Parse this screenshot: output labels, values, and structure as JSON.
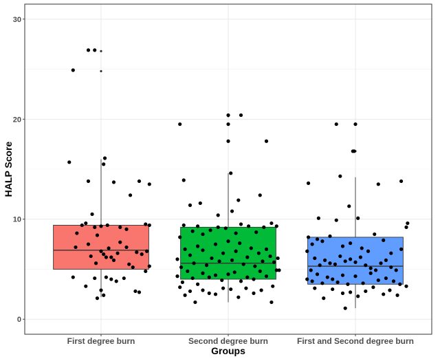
{
  "chart_data": {
    "type": "boxplot",
    "xlabel": "Groups",
    "ylabel": "HALP Score",
    "ylim": [
      -1.5,
      31.5
    ],
    "yticks": [
      0,
      10,
      20,
      30
    ],
    "grid": true,
    "categories": [
      "First degree burn",
      "Second degree burn",
      "First and Second degree burn"
    ],
    "series": [
      {
        "category": "First degree burn",
        "color": "#F8766D",
        "box": {
          "whisker_low": 2.2,
          "q1": 5.0,
          "median": 6.9,
          "q3": 9.4,
          "whisker_high": 16.0
        },
        "outliers": [
          24.8,
          26.8
        ],
        "points": [
          [
            0.78,
            24.9
          ],
          [
            0.9,
            26.9
          ],
          [
            0.95,
            26.9
          ],
          [
            0.75,
            15.7
          ],
          [
            1.03,
            16.1
          ],
          [
            1.02,
            15.5
          ],
          [
            0.9,
            13.8
          ],
          [
            1.1,
            13.7
          ],
          [
            1.3,
            13.8
          ],
          [
            1.38,
            13.5
          ],
          [
            1.23,
            12.4
          ],
          [
            0.78,
            4.2
          ],
          [
            0.8,
            7.2
          ],
          [
            0.81,
            8.6
          ],
          [
            0.85,
            9.4
          ],
          [
            0.88,
            9.6
          ],
          [
            0.93,
            10.5
          ],
          [
            0.95,
            9.2
          ],
          [
            0.97,
            8.4
          ],
          [
            1.0,
            9.3
          ],
          [
            1.05,
            9.4
          ],
          [
            1.15,
            9.2
          ],
          [
            1.2,
            9.0
          ],
          [
            1.35,
            9.5
          ],
          [
            1.38,
            9.4
          ],
          [
            0.9,
            7.5
          ],
          [
            0.92,
            6.3
          ],
          [
            0.96,
            5.6
          ],
          [
            1.0,
            6.8
          ],
          [
            1.02,
            6.5
          ],
          [
            1.04,
            6.2
          ],
          [
            1.06,
            7.1
          ],
          [
            1.08,
            6.2
          ],
          [
            1.1,
            5.9
          ],
          [
            1.13,
            6.6
          ],
          [
            1.15,
            7.7
          ],
          [
            1.2,
            7.2
          ],
          [
            1.25,
            5.2
          ],
          [
            1.28,
            6.7
          ],
          [
            1.32,
            6.5
          ],
          [
            1.36,
            6.8
          ],
          [
            1.38,
            5.3
          ],
          [
            0.88,
            3.3
          ],
          [
            0.95,
            4.1
          ],
          [
            1.0,
            2.9
          ],
          [
            1.04,
            4.2
          ],
          [
            1.08,
            4.0
          ],
          [
            1.12,
            3.8
          ],
          [
            1.18,
            4.1
          ],
          [
            1.22,
            5.5
          ],
          [
            1.27,
            2.8
          ],
          [
            1.3,
            2.7
          ],
          [
            1.35,
            4.8
          ],
          [
            0.97,
            2.1
          ],
          [
            1.02,
            2.4
          ]
        ]
      },
      {
        "category": "Second degree burn",
        "color": "#00BA38",
        "box": {
          "whisker_low": 1.7,
          "q1": 4.0,
          "median": 5.6,
          "q3": 9.2,
          "whisker_high": 14.6
        },
        "outliers": [
          17.8,
          19.5,
          20.3
        ],
        "points": [
          [
            1.62,
            19.5
          ],
          [
            2.0,
            20.4
          ],
          [
            2.0,
            19.5
          ],
          [
            2.0,
            17.8
          ],
          [
            2.1,
            20.4
          ],
          [
            2.3,
            17.8
          ],
          [
            1.65,
            13.9
          ],
          [
            2.02,
            14.6
          ],
          [
            1.7,
            11.4
          ],
          [
            1.78,
            11.6
          ],
          [
            1.92,
            10.4
          ],
          [
            2.08,
            11.9
          ],
          [
            2.25,
            12.4
          ],
          [
            2.03,
            10.8
          ],
          [
            1.62,
            8.2
          ],
          [
            1.65,
            9.4
          ],
          [
            1.72,
            8.8
          ],
          [
            1.76,
            9.3
          ],
          [
            1.8,
            8.5
          ],
          [
            1.86,
            8.9
          ],
          [
            1.92,
            9.2
          ],
          [
            1.98,
            9.1
          ],
          [
            2.06,
            8.6
          ],
          [
            2.1,
            9.5
          ],
          [
            2.16,
            9.3
          ],
          [
            2.22,
            8.7
          ],
          [
            2.28,
            9.2
          ],
          [
            2.34,
            9.6
          ],
          [
            2.38,
            9.3
          ],
          [
            1.6,
            6.0
          ],
          [
            1.63,
            5.2
          ],
          [
            1.66,
            7.0
          ],
          [
            1.7,
            6.4
          ],
          [
            1.73,
            5.6
          ],
          [
            1.76,
            7.3
          ],
          [
            1.8,
            6.9
          ],
          [
            1.83,
            5.4
          ],
          [
            1.87,
            6.1
          ],
          [
            1.9,
            7.5
          ],
          [
            1.93,
            5.8
          ],
          [
            1.96,
            6.6
          ],
          [
            2.0,
            7.8
          ],
          [
            2.03,
            5.9
          ],
          [
            2.06,
            6.8
          ],
          [
            2.09,
            7.6
          ],
          [
            2.12,
            5.5
          ],
          [
            2.15,
            6.2
          ],
          [
            2.18,
            7.1
          ],
          [
            2.21,
            5.3
          ],
          [
            2.24,
            6.6
          ],
          [
            2.27,
            5.8
          ],
          [
            2.3,
            7.0
          ],
          [
            2.33,
            6.3
          ],
          [
            2.36,
            5.7
          ],
          [
            2.39,
            6.1
          ],
          [
            2.4,
            4.9
          ],
          [
            1.6,
            4.3
          ],
          [
            1.64,
            3.7
          ],
          [
            1.68,
            4.8
          ],
          [
            1.72,
            4.1
          ],
          [
            1.76,
            3.5
          ],
          [
            1.8,
            4.6
          ],
          [
            1.85,
            4.2
          ],
          [
            1.9,
            4.4
          ],
          [
            1.95,
            3.9
          ],
          [
            2.0,
            4.5
          ],
          [
            2.05,
            4.7
          ],
          [
            2.1,
            3.8
          ],
          [
            2.15,
            4.2
          ],
          [
            2.2,
            4.0
          ],
          [
            2.25,
            4.8
          ],
          [
            2.3,
            4.3
          ],
          [
            2.35,
            3.3
          ],
          [
            2.38,
            4.9
          ],
          [
            1.62,
            3.2
          ],
          [
            1.66,
            2.4
          ],
          [
            1.7,
            2.8
          ],
          [
            1.74,
            1.7
          ],
          [
            1.8,
            2.9
          ],
          [
            1.85,
            2.6
          ],
          [
            1.9,
            2.5
          ],
          [
            1.96,
            3.1
          ],
          [
            2.02,
            3.0
          ],
          [
            2.08,
            2.2
          ],
          [
            2.14,
            3.1
          ],
          [
            2.2,
            2.6
          ],
          [
            2.26,
            2.9
          ],
          [
            2.34,
            1.7
          ]
        ]
      },
      {
        "category": "First and Second degree burn",
        "color": "#619CFF",
        "box": {
          "whisker_low": 1.1,
          "q1": 3.5,
          "median": 5.3,
          "q3": 8.2,
          "whisker_high": 14.2
        },
        "outliers": [
          16.8,
          19.5
        ],
        "points": [
          [
            2.85,
            19.5
          ],
          [
            3.0,
            19.5
          ],
          [
            2.98,
            16.8
          ],
          [
            2.99,
            16.8
          ],
          [
            2.88,
            14.3
          ],
          [
            2.63,
            13.6
          ],
          [
            3.18,
            13.5
          ],
          [
            3.36,
            13.8
          ],
          [
            2.95,
            11.3
          ],
          [
            2.71,
            10.1
          ],
          [
            2.85,
            9.9
          ],
          [
            3.02,
            10.1
          ],
          [
            3.15,
            8.5
          ],
          [
            3.22,
            7.9
          ],
          [
            3.4,
            9.2
          ],
          [
            3.41,
            9.6
          ],
          [
            2.63,
            8.2
          ],
          [
            2.66,
            7.5
          ],
          [
            2.7,
            8.0
          ],
          [
            2.74,
            7.8
          ],
          [
            2.8,
            8.3
          ],
          [
            2.9,
            7.3
          ],
          [
            2.96,
            7.6
          ],
          [
            3.05,
            7.1
          ],
          [
            3.1,
            6.8
          ],
          [
            3.28,
            6.6
          ],
          [
            3.36,
            7.0
          ],
          [
            2.62,
            6.8
          ],
          [
            2.65,
            4.9
          ],
          [
            2.68,
            6.1
          ],
          [
            2.72,
            5.4
          ],
          [
            2.76,
            5.9
          ],
          [
            2.8,
            5.6
          ],
          [
            2.84,
            5.5
          ],
          [
            2.88,
            6.3
          ],
          [
            2.92,
            5.8
          ],
          [
            2.96,
            6.0
          ],
          [
            3.0,
            5.7
          ],
          [
            3.04,
            6.2
          ],
          [
            3.08,
            5.4
          ],
          [
            3.12,
            5.1
          ],
          [
            3.16,
            4.9
          ],
          [
            3.2,
            5.6
          ],
          [
            3.24,
            5.9
          ],
          [
            3.28,
            5.2
          ],
          [
            3.32,
            4.9
          ],
          [
            2.62,
            4.0
          ],
          [
            2.66,
            3.8
          ],
          [
            2.7,
            4.5
          ],
          [
            2.74,
            3.6
          ],
          [
            2.78,
            4.2
          ],
          [
            2.82,
            4.0
          ],
          [
            2.86,
            3.7
          ],
          [
            2.9,
            4.4
          ],
          [
            2.94,
            3.5
          ],
          [
            3.0,
            4.3
          ],
          [
            3.06,
            3.6
          ],
          [
            3.12,
            4.6
          ],
          [
            3.18,
            3.9
          ],
          [
            3.24,
            4.1
          ],
          [
            3.3,
            3.8
          ],
          [
            3.35,
            3.5
          ],
          [
            3.4,
            3.3
          ],
          [
            2.68,
            3.1
          ],
          [
            2.75,
            2.1
          ],
          [
            2.82,
            3.0
          ],
          [
            2.9,
            2.6
          ],
          [
            2.96,
            2.7
          ],
          [
            3.02,
            2.3
          ],
          [
            3.08,
            2.8
          ],
          [
            3.14,
            3.2
          ],
          [
            3.22,
            2.5
          ],
          [
            3.27,
            2.9
          ],
          [
            3.33,
            2.4
          ],
          [
            2.92,
            1.1
          ]
        ]
      }
    ]
  }
}
